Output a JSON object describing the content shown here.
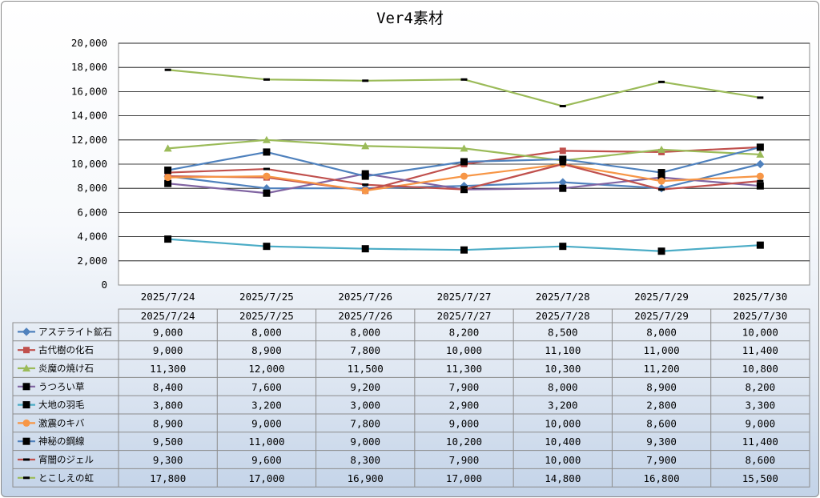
{
  "chart_data": {
    "type": "line",
    "title": "Ver4素材",
    "categories": [
      "2025/7/24",
      "2025/7/25",
      "2025/7/26",
      "2025/7/27",
      "2025/7/28",
      "2025/7/29",
      "2025/7/30"
    ],
    "ylim": [
      0,
      20000
    ],
    "yticks": [
      0,
      2000,
      4000,
      6000,
      8000,
      10000,
      12000,
      14000,
      16000,
      18000,
      20000
    ],
    "ytick_labels": [
      "0",
      "2,000",
      "4,000",
      "6,000",
      "8,000",
      "10,000",
      "12,000",
      "14,000",
      "16,000",
      "18,000",
      "20,000"
    ],
    "grid": true,
    "legend": "data-table",
    "series": [
      {
        "name": "アステライト鉱石",
        "color": "#4f81bd",
        "marker": "diamond",
        "values": [
          9000,
          8000,
          8000,
          8200,
          8500,
          8000,
          10000
        ],
        "labels": [
          "9,000",
          "8,000",
          "8,000",
          "8,200",
          "8,500",
          "8,000",
          "10,000"
        ]
      },
      {
        "name": "古代樹の化石",
        "color": "#c0504d",
        "marker": "square",
        "values": [
          9000,
          8900,
          7800,
          10000,
          11100,
          11000,
          11400
        ],
        "labels": [
          "9,000",
          "8,900",
          "7,800",
          "10,000",
          "11,100",
          "11,000",
          "11,400"
        ]
      },
      {
        "name": "炎魔の焼け石",
        "color": "#9bbb59",
        "marker": "triangle",
        "values": [
          11300,
          12000,
          11500,
          11300,
          10300,
          11200,
          10800
        ],
        "labels": [
          "11,300",
          "12,000",
          "11,500",
          "11,300",
          "10,300",
          "11,200",
          "10,800"
        ]
      },
      {
        "name": "うつろい草",
        "color": "#8064a2",
        "marker": "square-black",
        "values": [
          8400,
          7600,
          9200,
          7900,
          8000,
          8900,
          8200
        ],
        "labels": [
          "8,400",
          "7,600",
          "9,200",
          "7,900",
          "8,000",
          "8,900",
          "8,200"
        ]
      },
      {
        "name": "大地の羽毛",
        "color": "#4bacc6",
        "marker": "square-black",
        "values": [
          3800,
          3200,
          3000,
          2900,
          3200,
          2800,
          3300
        ],
        "labels": [
          "3,800",
          "3,200",
          "3,000",
          "2,900",
          "3,200",
          "2,800",
          "3,300"
        ]
      },
      {
        "name": "激震のキバ",
        "color": "#f79646",
        "marker": "circle",
        "values": [
          8900,
          9000,
          7800,
          9000,
          10000,
          8600,
          9000
        ],
        "labels": [
          "8,900",
          "9,000",
          "7,800",
          "9,000",
          "10,000",
          "8,600",
          "9,000"
        ]
      },
      {
        "name": "神秘の鋼線",
        "color": "#4f81bd",
        "marker": "square-black",
        "values": [
          9500,
          11000,
          9000,
          10200,
          10400,
          9300,
          11400
        ],
        "labels": [
          "9,500",
          "11,000",
          "9,000",
          "10,200",
          "10,400",
          "9,300",
          "11,400"
        ]
      },
      {
        "name": "宵闇のジェル",
        "color": "#c0504d",
        "marker": "dash",
        "values": [
          9300,
          9600,
          8300,
          7900,
          10000,
          7900,
          8600
        ],
        "labels": [
          "9,300",
          "9,600",
          "8,300",
          "7,900",
          "10,000",
          "7,900",
          "8,600"
        ]
      },
      {
        "name": "とこしえの虹",
        "color": "#9bbb59",
        "marker": "dash",
        "values": [
          17800,
          17000,
          16900,
          17000,
          14800,
          16800,
          15500
        ],
        "labels": [
          "17,800",
          "17,000",
          "16,900",
          "17,000",
          "14,800",
          "16,800",
          "15,500"
        ]
      }
    ]
  }
}
